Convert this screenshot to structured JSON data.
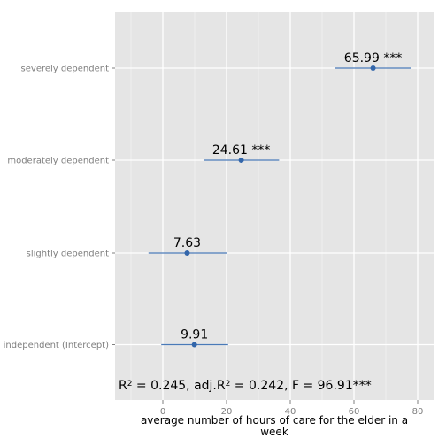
{
  "chart_data": {
    "type": "scatter",
    "subtype": "coefficient-plot",
    "xlabel": "average number of hours of care for the elder in a week",
    "xlim": [
      -15,
      85
    ],
    "xticks": [
      0,
      20,
      40,
      60,
      80
    ],
    "grid": true,
    "categories": [
      "independent (Intercept)",
      "slightly dependent",
      "moderately dependent",
      "severely dependent"
    ],
    "points": [
      {
        "category": "independent (Intercept)",
        "estimate": 9.91,
        "ci_low": -0.5,
        "ci_high": 20.5,
        "label": "9.91"
      },
      {
        "category": "slightly dependent",
        "estimate": 7.63,
        "ci_low": -4.5,
        "ci_high": 20,
        "label": "7.63"
      },
      {
        "category": "moderately dependent",
        "estimate": 24.61,
        "ci_low": 13,
        "ci_high": 36.5,
        "label": "24.61 ***"
      },
      {
        "category": "severely dependent",
        "estimate": 65.99,
        "ci_low": 54,
        "ci_high": 78,
        "label": "65.99 ***"
      }
    ],
    "annotation": {
      "r2": "0.245",
      "adj_r2": "0.242",
      "f_stat": "96.91***"
    },
    "colors": {
      "panel": "#e5e5e5",
      "grid_major": "#ffffff",
      "grid_minor": "#f2f2f2",
      "point": "#3366aa",
      "errorbar": "#4a7ab8",
      "tick_text": "#7f7f7f"
    }
  }
}
